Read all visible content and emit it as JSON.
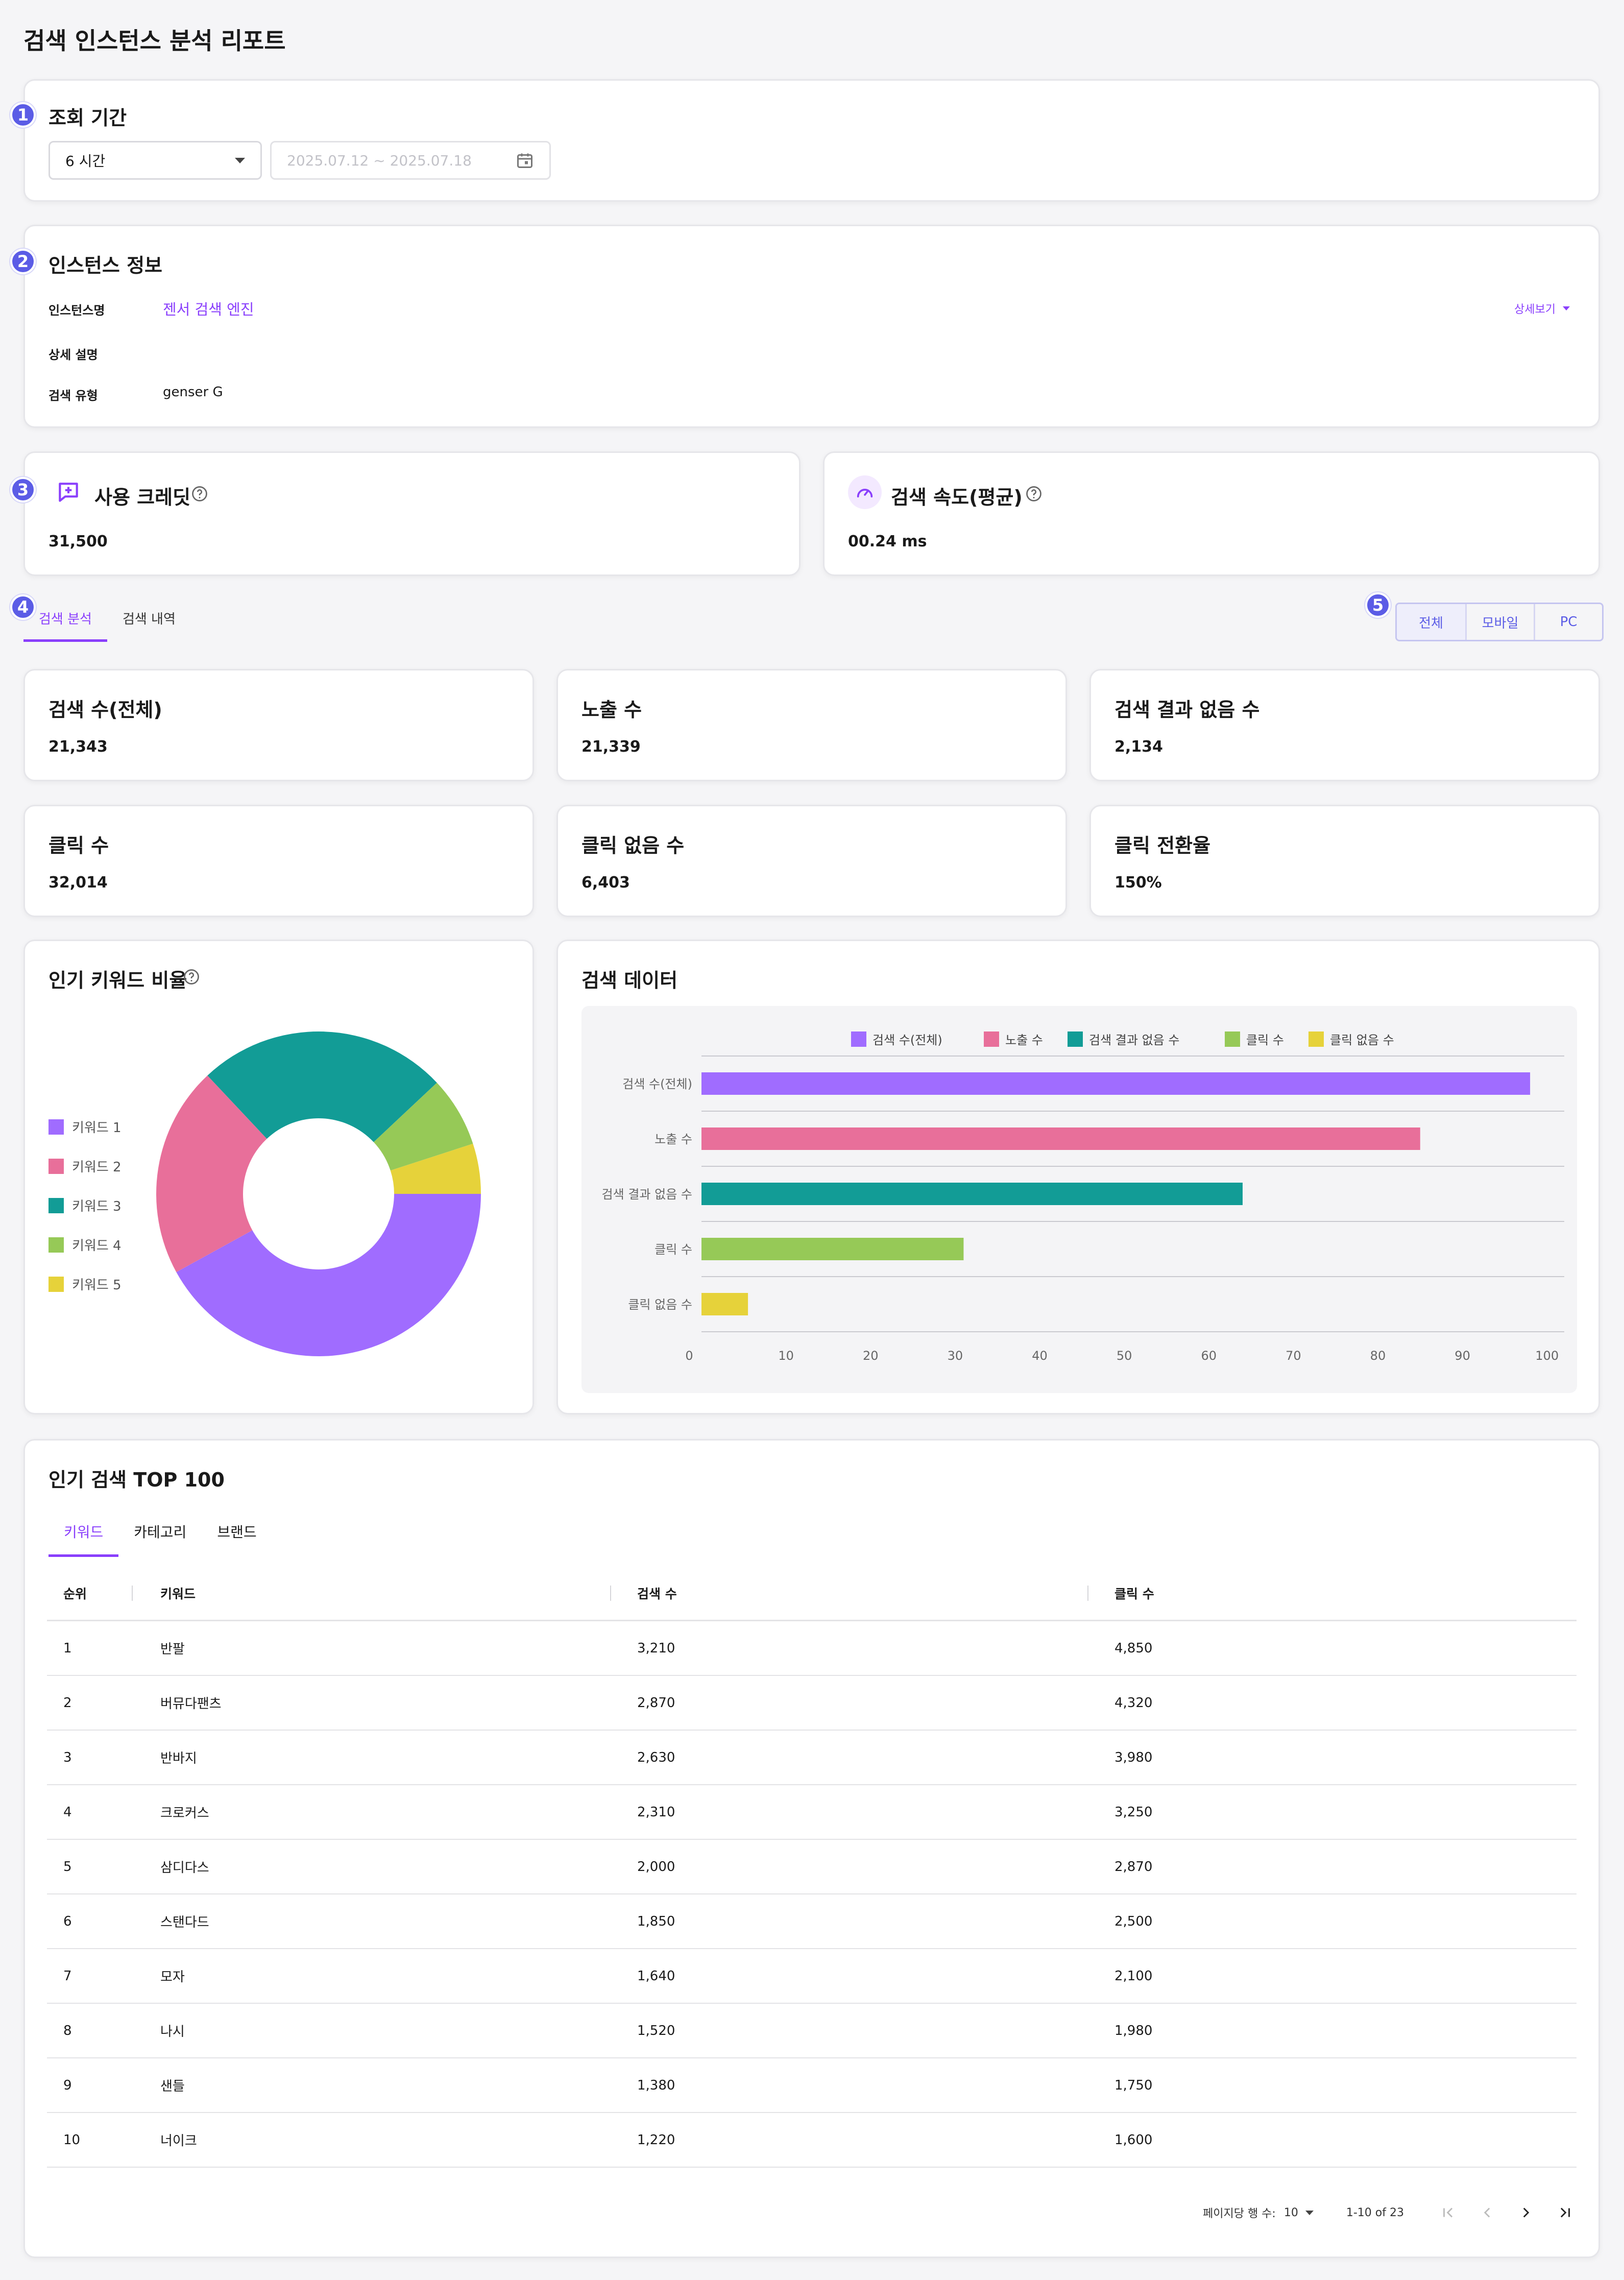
{
  "page": {
    "title": "검색 인스턴스 분석 리포트"
  },
  "badges": [
    "1",
    "2",
    "3",
    "4",
    "5"
  ],
  "period": {
    "title": "조회 기간",
    "selected": "6 시간",
    "date_range": "2025.07.12 ~ 2025.07.18"
  },
  "instance": {
    "title": "인스턴스 정보",
    "name_label": "인스턴스명",
    "name_value": "젠서 검색 엔진",
    "desc_label": "상세 설명",
    "desc_value": "",
    "type_label": "검색 유형",
    "type_value": "genser G",
    "detail_link": "상세보기"
  },
  "credit": {
    "title": "사용 크레딧",
    "value": "31,500",
    "icon": "credit-chat-icon"
  },
  "speed": {
    "title": "검색 속도(평균)",
    "value": "00.24 ms",
    "icon": "speedometer-icon"
  },
  "tabs": [
    {
      "label": "검색 분석",
      "active": true
    },
    {
      "label": "검색 내역",
      "active": false
    }
  ],
  "segment": [
    "전체",
    "모바일",
    "PC"
  ],
  "metrics": [
    {
      "title": "검색 수(전체)",
      "value": "21,343"
    },
    {
      "title": "노출 수",
      "value": "21,339"
    },
    {
      "title": "검색 결과 없음 수",
      "value": "2,134"
    },
    {
      "title": "클릭 수",
      "value": "32,014"
    },
    {
      "title": "클릭 없음 수",
      "value": "6,403"
    },
    {
      "title": "클릭 전환율",
      "value": "150%"
    }
  ],
  "keyword_ratio": {
    "title": "인기 키워드 비율"
  },
  "search_data": {
    "title": "검색 데이터"
  },
  "chart_data": [
    {
      "type": "pie",
      "labels": [
        "키워드 1",
        "키워드 2",
        "키워드 3",
        "키워드 4",
        "키워드 5"
      ],
      "values": [
        42,
        21,
        25,
        7,
        5
      ],
      "colors": [
        "#a06cff",
        "#e86f9a",
        "#129c96",
        "#96c957",
        "#e6d23a"
      ],
      "donut": true
    },
    {
      "type": "bar",
      "orientation": "horizontal",
      "categories": [
        "검색 수(전체)",
        "노출 수",
        "검색 결과 없음 수",
        "클릭 수",
        "클릭 없음 수"
      ],
      "values": [
        98,
        85,
        64,
        31,
        5.5
      ],
      "colors": [
        "#a06cff",
        "#e86f9a",
        "#129c96",
        "#96c957",
        "#e6d23a"
      ],
      "legend": [
        "검색 수(전체)",
        "노출 수",
        "검색 결과 없음 수",
        "클릭 수",
        "클릭 없음 수"
      ],
      "xlim": [
        0,
        100
      ],
      "xticks": [
        "0",
        "10",
        "20",
        "30",
        "40",
        "50",
        "60",
        "70",
        "80",
        "90",
        "100"
      ],
      "legend_position": "top",
      "grid": true
    }
  ],
  "top100": {
    "title": "인기 검색 TOP 100",
    "subtabs": [
      "키워드",
      "카테고리",
      "브랜드"
    ],
    "columns": [
      "순위",
      "키워드",
      "검색 수",
      "클릭 수"
    ],
    "rows": [
      [
        "1",
        "반팔",
        "3,210",
        "4,850"
      ],
      [
        "2",
        "버뮤다팬츠",
        "2,870",
        "4,320"
      ],
      [
        "3",
        "반바지",
        "2,630",
        "3,980"
      ],
      [
        "4",
        "크로커스",
        "2,310",
        "3,250"
      ],
      [
        "5",
        "삼디다스",
        "2,000",
        "2,870"
      ],
      [
        "6",
        "스탠다드",
        "1,850",
        "2,500"
      ],
      [
        "7",
        "모자",
        "1,640",
        "2,100"
      ],
      [
        "8",
        "나시",
        "1,520",
        "1,980"
      ],
      [
        "9",
        "샌들",
        "1,380",
        "1,750"
      ],
      [
        "10",
        "너이크",
        "1,220",
        "1,600"
      ]
    ],
    "pagination": {
      "rows_per_page_label": "페이지당 행 수:",
      "rows_per_page": "10",
      "range": "1-10 of 23"
    }
  }
}
